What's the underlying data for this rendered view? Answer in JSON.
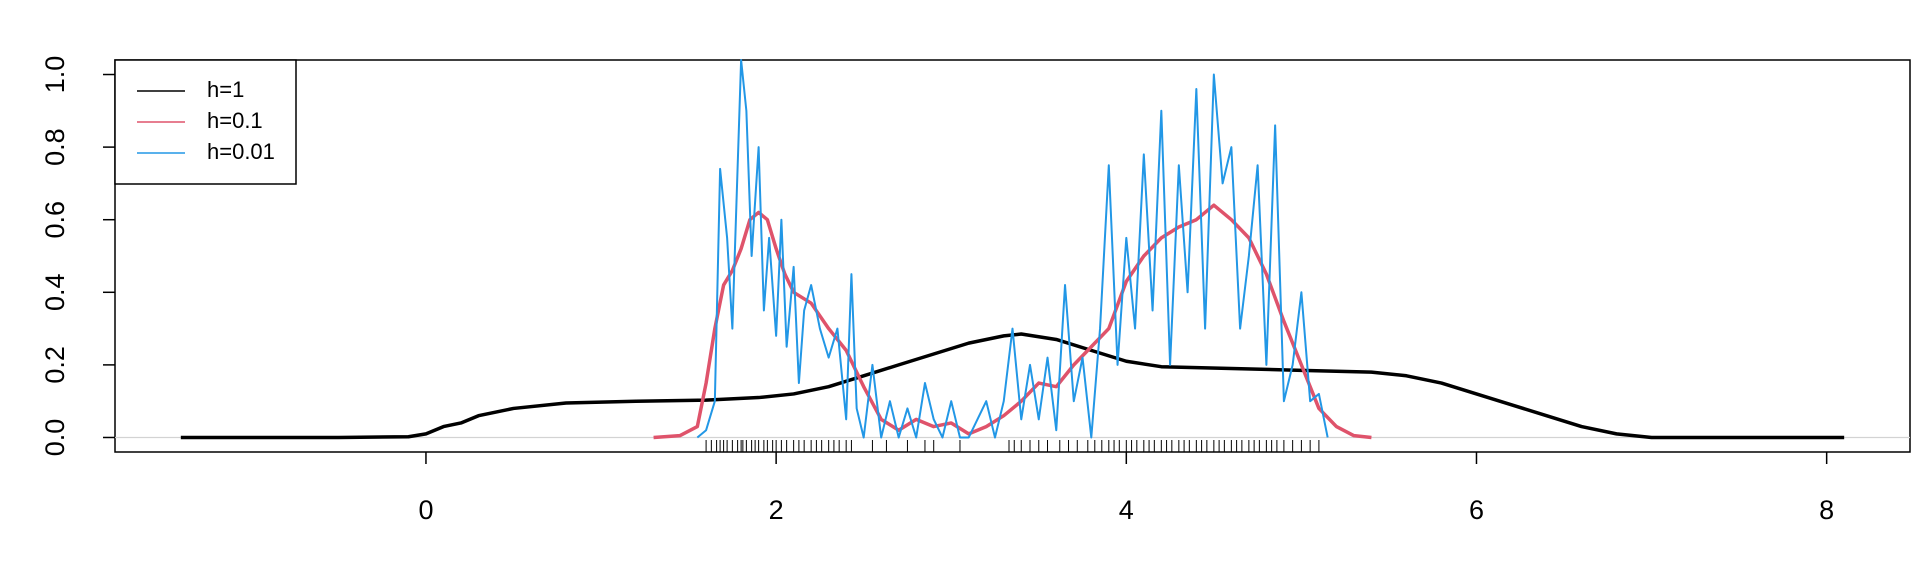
{
  "chart_data": {
    "type": "line",
    "xlim": [
      -1.776,
      8.476
    ],
    "ylim": [
      -0.04,
      1.04
    ],
    "xticks": [
      0,
      2,
      4,
      6,
      8
    ],
    "yticks": [
      {
        "value": 0,
        "label": "0.0"
      },
      {
        "value": 0.2,
        "label": "0.2"
      },
      {
        "value": 0.4,
        "label": "0.4"
      },
      {
        "value": 0.6,
        "label": "0.6"
      },
      {
        "value": 0.8,
        "label": "0.8"
      },
      {
        "value": 1,
        "label": "1.0"
      }
    ],
    "hline": 0,
    "hline_color": "#d3d3d3",
    "legend_position": "top-left",
    "series": [
      {
        "name": "h=1",
        "color": "#000000",
        "x": [
          -1.4,
          -0.5,
          -0.1,
          0.0,
          0.1,
          0.2,
          0.3,
          0.5,
          0.8,
          1.2,
          1.6,
          1.9,
          2.1,
          2.3,
          2.5,
          2.7,
          2.9,
          3.1,
          3.3,
          3.4,
          3.6,
          3.8,
          4.0,
          4.2,
          4.6,
          5.0,
          5.4,
          5.6,
          5.8,
          6.0,
          6.2,
          6.4,
          6.6,
          6.8,
          7.0,
          8.1
        ],
        "values": [
          0,
          0,
          0.002,
          0.01,
          0.03,
          0.04,
          0.06,
          0.08,
          0.095,
          0.1,
          0.103,
          0.11,
          0.12,
          0.14,
          0.17,
          0.2,
          0.23,
          0.26,
          0.28,
          0.285,
          0.27,
          0.24,
          0.21,
          0.195,
          0.19,
          0.185,
          0.18,
          0.17,
          0.15,
          0.12,
          0.09,
          0.06,
          0.03,
          0.01,
          0,
          0
        ]
      },
      {
        "name": "h=0.1",
        "color": "#df536b",
        "x": [
          1.3,
          1.45,
          1.55,
          1.6,
          1.65,
          1.7,
          1.75,
          1.8,
          1.85,
          1.9,
          1.95,
          2.0,
          2.05,
          2.1,
          2.2,
          2.3,
          2.4,
          2.5,
          2.6,
          2.7,
          2.8,
          2.9,
          3.0,
          3.1,
          3.2,
          3.3,
          3.4,
          3.5,
          3.6,
          3.7,
          3.8,
          3.9,
          4.0,
          4.1,
          4.2,
          4.3,
          4.4,
          4.5,
          4.6,
          4.7,
          4.8,
          4.9,
          5.0,
          5.1,
          5.2,
          5.3,
          5.4
        ],
        "values": [
          0,
          0.005,
          0.03,
          0.15,
          0.3,
          0.42,
          0.46,
          0.52,
          0.6,
          0.62,
          0.6,
          0.52,
          0.45,
          0.4,
          0.37,
          0.3,
          0.24,
          0.14,
          0.05,
          0.02,
          0.05,
          0.03,
          0.04,
          0.01,
          0.03,
          0.06,
          0.1,
          0.15,
          0.14,
          0.2,
          0.25,
          0.3,
          0.43,
          0.5,
          0.55,
          0.58,
          0.6,
          0.64,
          0.6,
          0.55,
          0.45,
          0.32,
          0.2,
          0.08,
          0.03,
          0.005,
          0
        ]
      },
      {
        "name": "h=0.01",
        "color": "#2297e6",
        "x": [
          1.55,
          1.6,
          1.65,
          1.68,
          1.72,
          1.75,
          1.8,
          1.83,
          1.86,
          1.9,
          1.93,
          1.96,
          2.0,
          2.03,
          2.06,
          2.1,
          2.13,
          2.16,
          2.2,
          2.25,
          2.3,
          2.35,
          2.4,
          2.43,
          2.46,
          2.5,
          2.55,
          2.6,
          2.65,
          2.7,
          2.75,
          2.8,
          2.85,
          2.9,
          2.95,
          3.0,
          3.05,
          3.1,
          3.2,
          3.25,
          3.3,
          3.35,
          3.4,
          3.45,
          3.5,
          3.55,
          3.6,
          3.65,
          3.7,
          3.75,
          3.8,
          3.85,
          3.9,
          3.95,
          4.0,
          4.05,
          4.1,
          4.15,
          4.2,
          4.25,
          4.3,
          4.35,
          4.4,
          4.45,
          4.5,
          4.55,
          4.6,
          4.65,
          4.7,
          4.75,
          4.8,
          4.85,
          4.9,
          4.95,
          5.0,
          5.05,
          5.1,
          5.15
        ],
        "values": [
          0,
          0.02,
          0.1,
          0.74,
          0.55,
          0.3,
          1.04,
          0.9,
          0.5,
          0.8,
          0.35,
          0.55,
          0.28,
          0.6,
          0.25,
          0.47,
          0.15,
          0.35,
          0.42,
          0.3,
          0.22,
          0.3,
          0.05,
          0.45,
          0.08,
          0,
          0.2,
          0,
          0.1,
          0,
          0.08,
          0,
          0.15,
          0.05,
          0,
          0.1,
          0,
          0,
          0.1,
          0,
          0.1,
          0.3,
          0.05,
          0.2,
          0.05,
          0.22,
          0.02,
          0.42,
          0.1,
          0.22,
          0,
          0.3,
          0.75,
          0.2,
          0.55,
          0.3,
          0.78,
          0.35,
          0.9,
          0.2,
          0.75,
          0.4,
          0.96,
          0.3,
          1.0,
          0.7,
          0.8,
          0.3,
          0.5,
          0.75,
          0.2,
          0.86,
          0.1,
          0.2,
          0.4,
          0.1,
          0.12,
          0
        ]
      }
    ],
    "rug": [
      1.6,
      1.63,
      1.66,
      1.68,
      1.7,
      1.72,
      1.75,
      1.78,
      1.8,
      1.81,
      1.83,
      1.86,
      1.88,
      1.9,
      1.93,
      1.95,
      1.98,
      2.0,
      2.03,
      2.06,
      2.1,
      2.13,
      2.16,
      2.2,
      2.23,
      2.26,
      2.3,
      2.33,
      2.36,
      2.4,
      2.43,
      2.55,
      2.63,
      2.75,
      2.85,
      2.9,
      3.05,
      3.33,
      3.36,
      3.4,
      3.45,
      3.5,
      3.55,
      3.62,
      3.67,
      3.72,
      3.78,
      3.82,
      3.86,
      3.9,
      3.93,
      3.96,
      4.0,
      4.03,
      4.06,
      4.1,
      4.13,
      4.16,
      4.2,
      4.23,
      4.26,
      4.3,
      4.33,
      4.36,
      4.4,
      4.43,
      4.46,
      4.5,
      4.53,
      4.56,
      4.6,
      4.63,
      4.66,
      4.7,
      4.73,
      4.76,
      4.8,
      4.83,
      4.86,
      4.9,
      4.95,
      5.0,
      5.05,
      5.1
    ]
  }
}
